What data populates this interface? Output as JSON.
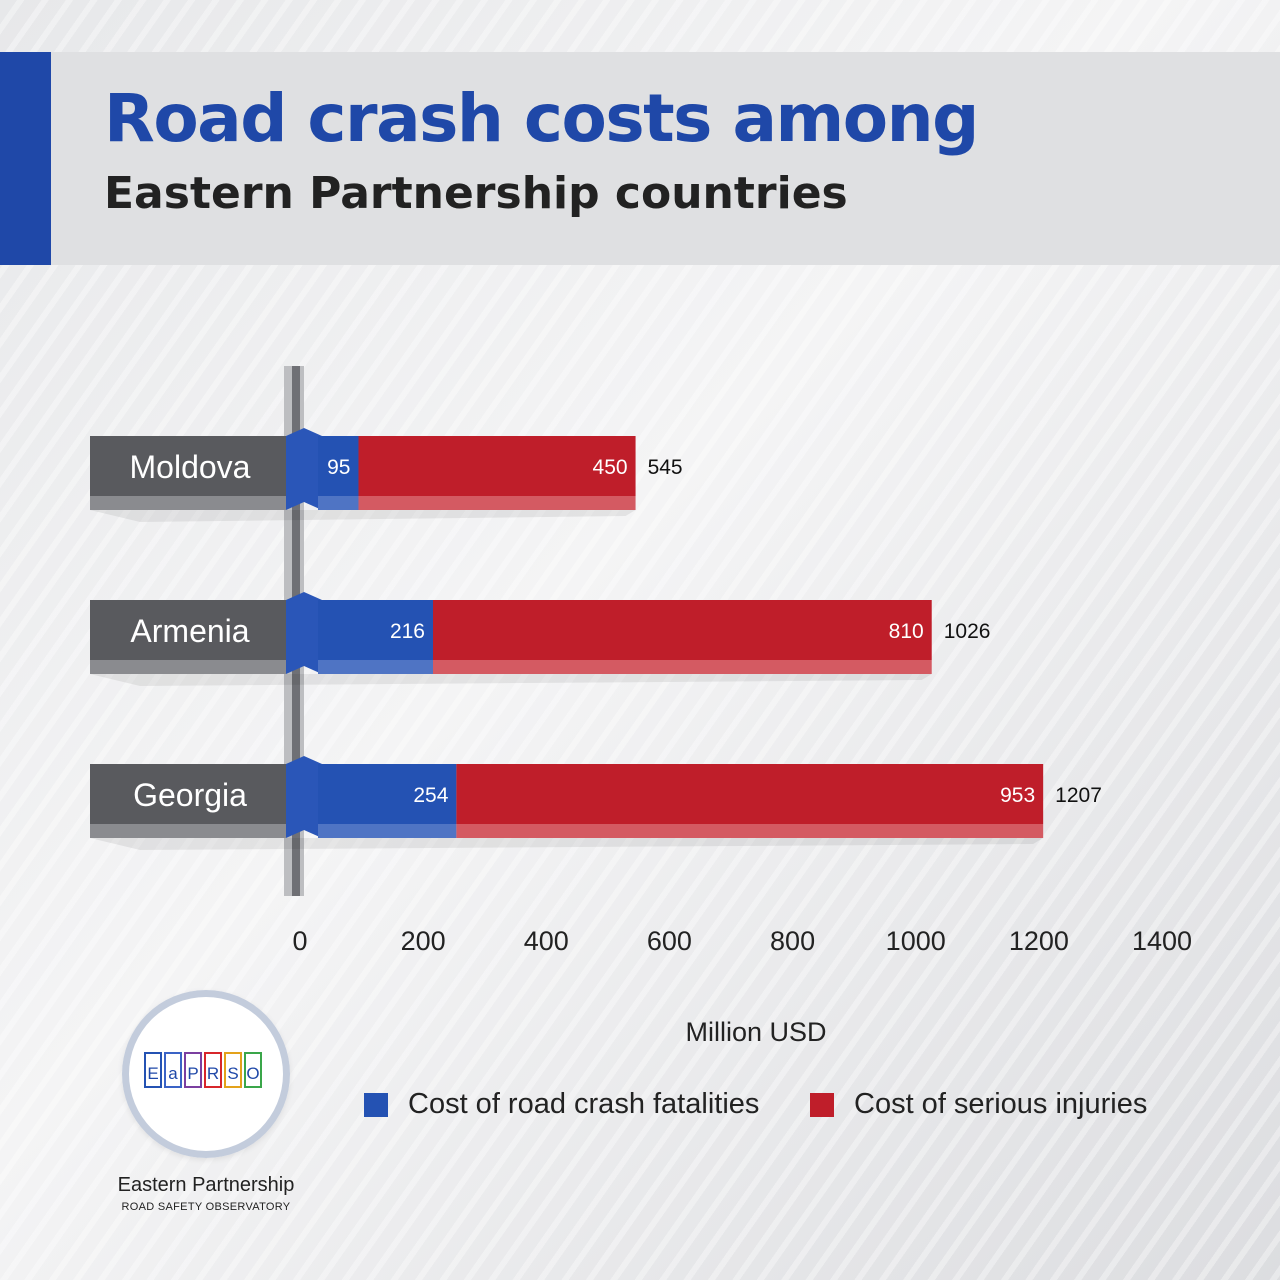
{
  "header": {
    "title": "Road crash costs among",
    "subtitle": "Eastern Partnership countries"
  },
  "colors": {
    "accent": "#1f48a8",
    "fatalities": "#2452b3",
    "injuries": "#bf1e2a",
    "label_box": "#595a5e"
  },
  "chart_data": {
    "type": "bar",
    "orientation": "horizontal",
    "stacked": true,
    "categories": [
      "Moldova",
      "Armenia",
      "Georgia"
    ],
    "series": [
      {
        "name": "Cost of road crash fatalities",
        "values": [
          95,
          216,
          254
        ]
      },
      {
        "name": "Cost of serious injuries",
        "values": [
          450,
          810,
          953
        ]
      }
    ],
    "totals": [
      545,
      1026,
      1207
    ],
    "xlabel": "Million USD",
    "xlim": [
      0,
      1400
    ],
    "xticks": [
      0,
      200,
      400,
      600,
      800,
      1000,
      1200,
      1400
    ],
    "legend_position": "bottom"
  },
  "logo": {
    "letters": [
      "E",
      "a",
      "P",
      "R",
      "S",
      "O"
    ],
    "letter_colors": [
      "#2452b3",
      "#3a63c6",
      "#7b3fa0",
      "#d7262b",
      "#e3a21a",
      "#3aa64a"
    ],
    "name": "Eastern Partnership",
    "subname": "ROAD SAFETY OBSERVATORY"
  }
}
